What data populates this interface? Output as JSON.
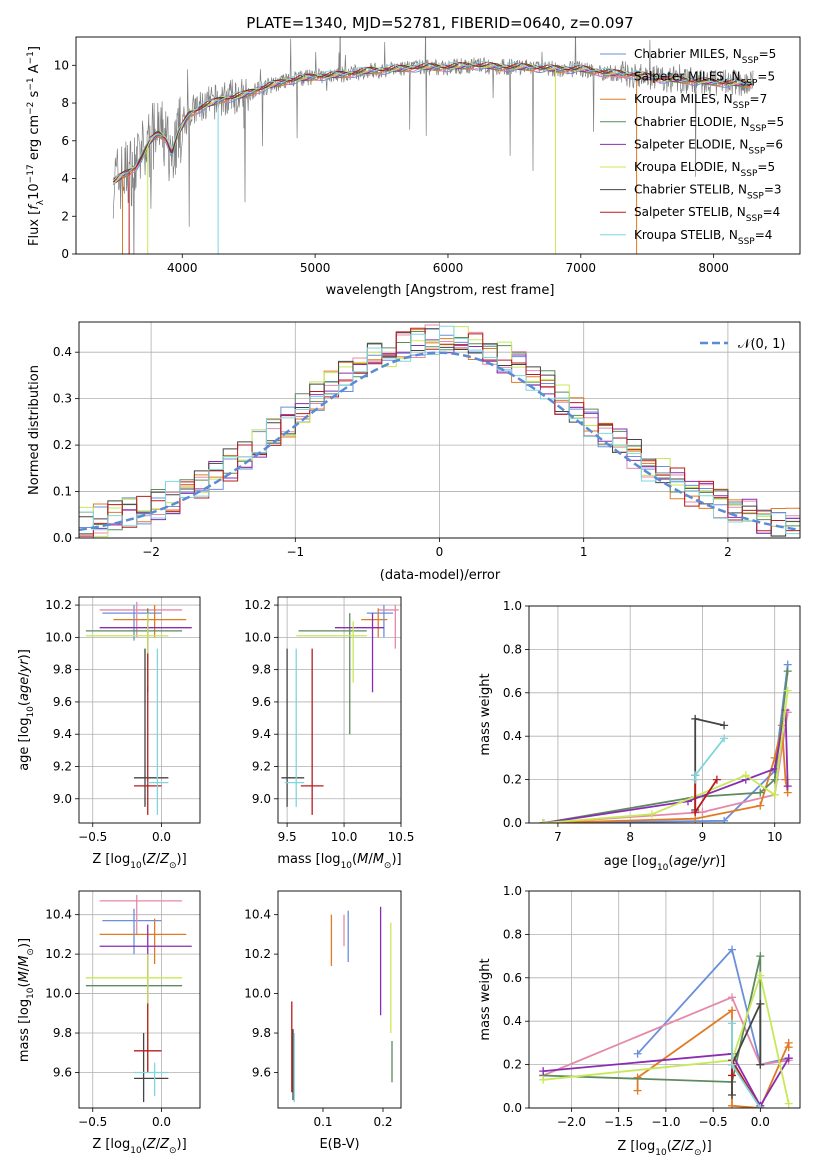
{
  "colors": {
    "chabrier_miles": "#6a8fdc",
    "salpeter_miles": "#e48aa8",
    "kroupa_miles": "#e07b25",
    "chabrier_elodie": "#5f8a5f",
    "salpeter_elodie": "#8a2db2",
    "kroupa_elodie": "#c8e85a",
    "chabrier_stelib": "#444444",
    "salpeter_stelib": "#b81c1c",
    "kroupa_stelib": "#7fd6dc",
    "observed": "#808080",
    "normal": "#5b8bd6",
    "grid": "#b0b0b0"
  },
  "chart_data": [
    {
      "id": "spectrum",
      "type": "line",
      "title": "PLATE=1340, MJD=52781, FIBERID=0640, z=0.097",
      "xlabel": "wavelength [Angstrom, rest frame]",
      "ylabel": "Flux [f_λ 10^-17 erg cm^-2 s^-1 A^-1]",
      "xlim": [
        3200,
        8650
      ],
      "ylim": [
        0,
        11.5
      ],
      "xticks": [
        4000,
        5000,
        6000,
        7000,
        8000
      ],
      "yticks": [
        0,
        2,
        4,
        6,
        8,
        10
      ],
      "legend_position": "top-right",
      "legend": [
        {
          "base": "Chabrier MILES, N",
          "sub": "SSP",
          "tail": "=5",
          "color_key": "chabrier_miles"
        },
        {
          "base": "Salpeter MILES, N",
          "sub": "SSP",
          "tail": "=5",
          "color_key": "salpeter_miles"
        },
        {
          "base": "Kroupa MILES, N",
          "sub": "SSP",
          "tail": "=7",
          "color_key": "kroupa_miles"
        },
        {
          "base": "Chabrier ELODIE, N",
          "sub": "SSP",
          "tail": "=5",
          "color_key": "chabrier_elodie"
        },
        {
          "base": "Salpeter ELODIE, N",
          "sub": "SSP",
          "tail": "=6",
          "color_key": "salpeter_elodie"
        },
        {
          "base": "Kroupa ELODIE, N",
          "sub": "SSP",
          "tail": "=5",
          "color_key": "kroupa_elodie"
        },
        {
          "base": "Chabrier STELIB, N",
          "sub": "SSP",
          "tail": "=3",
          "color_key": "chabrier_stelib"
        },
        {
          "base": "Salpeter STELIB, N",
          "sub": "SSP",
          "tail": "=4",
          "color_key": "salpeter_stelib"
        },
        {
          "base": "Kroupa STELIB, N",
          "sub": "SSP",
          "tail": "=4",
          "color_key": "kroupa_stelib"
        }
      ],
      "continuum": [
        [
          3480,
          3.8
        ],
        [
          3560,
          4.2
        ],
        [
          3650,
          4.6
        ],
        [
          3700,
          5.2
        ],
        [
          3760,
          6.0
        ],
        [
          3820,
          6.4
        ],
        [
          3880,
          6.1
        ],
        [
          3920,
          5.3
        ],
        [
          3970,
          6.4
        ],
        [
          4050,
          7.4
        ],
        [
          4150,
          7.8
        ],
        [
          4300,
          8.2
        ],
        [
          4450,
          8.4
        ],
        [
          4600,
          8.8
        ],
        [
          4800,
          9.2
        ],
        [
          5000,
          9.4
        ],
        [
          5200,
          9.5
        ],
        [
          5400,
          9.7
        ],
        [
          5600,
          9.8
        ],
        [
          5800,
          9.9
        ],
        [
          6000,
          9.9
        ],
        [
          6200,
          10.0
        ],
        [
          6400,
          9.9
        ],
        [
          6600,
          9.9
        ],
        [
          6800,
          9.8
        ],
        [
          7000,
          9.8
        ],
        [
          7200,
          9.6
        ],
        [
          7400,
          9.5
        ],
        [
          7600,
          9.3
        ],
        [
          7800,
          9.2
        ],
        [
          8000,
          9.1
        ],
        [
          8300,
          9.0
        ]
      ]
    },
    {
      "id": "residuals",
      "type": "histogram",
      "xlabel": "(data-model)/error",
      "ylabel": "Normed distribution",
      "xlim": [
        -2.5,
        2.5
      ],
      "ylim": [
        0,
        0.465
      ],
      "xticks": [
        -2,
        -1,
        0,
        1,
        2
      ],
      "yticks": [
        0.0,
        0.1,
        0.2,
        0.3,
        0.4
      ],
      "grid": true,
      "bins": 50,
      "legend_position": "top-right",
      "legend_label": "N(0,1)"
    },
    {
      "id": "age_vs_Z",
      "type": "errorbar",
      "xlabel": "Z [log10(Z/Z☉)]",
      "ylabel": "age [log10(age/yr)]",
      "xlim": [
        -0.6,
        0.28
      ],
      "ylim": [
        8.85,
        10.25
      ],
      "xticks": [
        -0.5,
        0.0
      ],
      "yticks": [
        9.0,
        9.2,
        9.4,
        9.6,
        9.8,
        10.0,
        10.2
      ],
      "grid": true,
      "points": [
        {
          "c": "chabrier_miles",
          "x": -0.2,
          "xlo": -0.43,
          "xhi": 0.0,
          "y": 10.15,
          "ylo": 9.98,
          "yhi": 10.2
        },
        {
          "c": "salpeter_miles",
          "x": -0.18,
          "xlo": -0.45,
          "xhi": 0.15,
          "y": 10.17,
          "ylo": 10.0,
          "yhi": 10.22
        },
        {
          "c": "kroupa_miles",
          "x": -0.05,
          "xlo": -0.35,
          "xhi": 0.18,
          "y": 10.11,
          "ylo": 10.0,
          "yhi": 10.2
        },
        {
          "c": "chabrier_elodie",
          "x": -0.1,
          "xlo": -0.55,
          "xhi": 0.15,
          "y": 10.04,
          "ylo": 9.75,
          "yhi": 10.18
        },
        {
          "c": "salpeter_elodie",
          "x": -0.1,
          "xlo": -0.45,
          "xhi": 0.22,
          "y": 10.06,
          "ylo": 9.66,
          "yhi": 10.15
        },
        {
          "c": "kroupa_elodie",
          "x": -0.1,
          "xlo": -0.55,
          "xhi": 0.05,
          "y": 10.01,
          "ylo": 9.7,
          "yhi": 10.15
        },
        {
          "c": "chabrier_stelib",
          "x": -0.12,
          "xlo": -0.2,
          "xhi": 0.05,
          "y": 9.13,
          "ylo": 8.95,
          "yhi": 9.93
        },
        {
          "c": "salpeter_stelib",
          "x": -0.1,
          "xlo": -0.2,
          "xhi": 0.0,
          "y": 9.08,
          "ylo": 8.9,
          "yhi": 9.9
        },
        {
          "c": "kroupa_stelib",
          "x": -0.03,
          "xlo": -0.1,
          "xhi": 0.05,
          "y": 9.1,
          "ylo": 8.9,
          "yhi": 9.93
        }
      ]
    },
    {
      "id": "age_vs_mass",
      "type": "errorbar",
      "xlabel": "mass [log10(M/M☉)]",
      "ylabel": "",
      "xlim": [
        9.42,
        10.5
      ],
      "ylim": [
        8.85,
        10.25
      ],
      "xticks": [
        9.5,
        10.0,
        10.5
      ],
      "yticks": [
        9.0,
        9.2,
        9.4,
        9.6,
        9.8,
        10.0,
        10.2
      ],
      "grid": true,
      "points": [
        {
          "c": "chabrier_miles",
          "x": 10.35,
          "xlo": 10.2,
          "xhi": 10.43,
          "y": 10.15,
          "ylo": 10.0,
          "yhi": 10.2
        },
        {
          "c": "salpeter_miles",
          "x": 10.45,
          "xlo": 10.3,
          "xhi": 10.48,
          "y": 10.17,
          "ylo": 9.93,
          "yhi": 10.2
        },
        {
          "c": "kroupa_miles",
          "x": 10.3,
          "xlo": 10.15,
          "xhi": 10.38,
          "y": 10.11,
          "ylo": 10.0,
          "yhi": 10.18
        },
        {
          "c": "chabrier_elodie",
          "x": 10.05,
          "xlo": 9.6,
          "xhi": 10.2,
          "y": 10.04,
          "ylo": 9.4,
          "yhi": 10.15
        },
        {
          "c": "salpeter_elodie",
          "x": 10.25,
          "xlo": 9.92,
          "xhi": 10.35,
          "y": 10.06,
          "ylo": 9.66,
          "yhi": 10.15
        },
        {
          "c": "kroupa_elodie",
          "x": 10.08,
          "xlo": 9.58,
          "xhi": 10.2,
          "y": 10.01,
          "ylo": 9.72,
          "yhi": 10.1
        },
        {
          "c": "chabrier_stelib",
          "x": 9.5,
          "xlo": 9.45,
          "xhi": 9.65,
          "y": 9.13,
          "ylo": 8.95,
          "yhi": 9.93
        },
        {
          "c": "salpeter_stelib",
          "x": 9.72,
          "xlo": 9.62,
          "xhi": 9.82,
          "y": 9.08,
          "ylo": 8.9,
          "yhi": 9.93
        },
        {
          "c": "kroupa_stelib",
          "x": 9.58,
          "xlo": 9.48,
          "xhi": 9.65,
          "y": 9.1,
          "ylo": 8.95,
          "yhi": 9.93
        }
      ]
    },
    {
      "id": "weight_vs_age",
      "type": "line",
      "xlabel": "age [log10(age/yr)]",
      "ylabel": "mass weight",
      "xlim": [
        6.6,
        10.35
      ],
      "ylim": [
        0,
        1.0
      ],
      "xticks": [
        7,
        8,
        9,
        10
      ],
      "yticks": [
        0.0,
        0.2,
        0.4,
        0.6,
        0.8,
        1.0
      ],
      "grid": true,
      "series": [
        {
          "c": "chabrier_miles",
          "x": [
            6.8,
            9.3,
            10.0,
            10.18
          ],
          "y": [
            0.0,
            0.01,
            0.24,
            0.73
          ]
        },
        {
          "c": "salpeter_miles",
          "x": [
            6.8,
            9.0,
            10.0,
            10.18
          ],
          "y": [
            0.0,
            0.05,
            0.13,
            0.51
          ]
        },
        {
          "c": "kroupa_miles",
          "x": [
            6.8,
            8.9,
            9.8,
            10.0,
            10.1,
            10.15,
            10.18
          ],
          "y": [
            0.0,
            0.02,
            0.08,
            0.3,
            0.45,
            0.2,
            0.14
          ]
        },
        {
          "c": "chabrier_elodie",
          "x": [
            6.8,
            8.9,
            9.8,
            10.0,
            10.18
          ],
          "y": [
            0.0,
            0.12,
            0.14,
            0.2,
            0.7
          ]
        },
        {
          "c": "salpeter_elodie",
          "x": [
            6.8,
            8.8,
            9.6,
            10.0,
            10.15,
            10.18
          ],
          "y": [
            0.0,
            0.1,
            0.2,
            0.25,
            0.52,
            0.17
          ]
        },
        {
          "c": "kroupa_elodie",
          "x": [
            6.8,
            8.3,
            9.6,
            10.0,
            10.18
          ],
          "y": [
            0.0,
            0.04,
            0.22,
            0.13,
            0.61
          ]
        },
        {
          "c": "chabrier_stelib",
          "x": [
            8.9,
            8.9,
            9.3
          ],
          "y": [
            0.06,
            0.48,
            0.45
          ]
        },
        {
          "c": "salpeter_stelib",
          "x": [
            8.9,
            8.9,
            9.2
          ],
          "y": [
            0.22,
            0.05,
            0.2
          ]
        },
        {
          "c": "kroupa_stelib",
          "x": [
            8.9,
            8.9,
            9.3
          ],
          "y": [
            0.2,
            0.22,
            0.39
          ]
        }
      ]
    },
    {
      "id": "mass_vs_Z",
      "type": "errorbar",
      "xlabel": "Z [log10(Z/Z☉)]",
      "ylabel": "mass [log10(M/M☉)]",
      "xlim": [
        -0.6,
        0.28
      ],
      "ylim": [
        9.42,
        10.52
      ],
      "xticks": [
        -0.5,
        0.0
      ],
      "yticks": [
        9.6,
        9.8,
        10.0,
        10.2,
        10.4
      ],
      "grid": true,
      "points": [
        {
          "c": "chabrier_miles",
          "x": -0.2,
          "xlo": -0.43,
          "xhi": 0.0,
          "y": 10.37,
          "ylo": 10.2,
          "yhi": 10.43
        },
        {
          "c": "salpeter_miles",
          "x": -0.18,
          "xlo": -0.45,
          "xhi": 0.15,
          "y": 10.47,
          "ylo": 10.3,
          "yhi": 10.5
        },
        {
          "c": "kroupa_miles",
          "x": -0.05,
          "xlo": -0.45,
          "xhi": 0.18,
          "y": 10.3,
          "ylo": 10.15,
          "yhi": 10.38
        },
        {
          "c": "chabrier_elodie",
          "x": -0.1,
          "xlo": -0.55,
          "xhi": 0.15,
          "y": 10.04,
          "ylo": 9.6,
          "yhi": 10.2
        },
        {
          "c": "salpeter_elodie",
          "x": -0.1,
          "xlo": -0.45,
          "xhi": 0.22,
          "y": 10.24,
          "ylo": 9.9,
          "yhi": 10.35
        },
        {
          "c": "kroupa_elodie",
          "x": -0.1,
          "xlo": -0.55,
          "xhi": 0.15,
          "y": 10.08,
          "ylo": 9.6,
          "yhi": 10.2
        },
        {
          "c": "chabrier_stelib",
          "x": -0.13,
          "xlo": -0.2,
          "xhi": 0.05,
          "y": 9.57,
          "ylo": 9.45,
          "yhi": 9.8
        },
        {
          "c": "salpeter_stelib",
          "x": -0.1,
          "xlo": -0.2,
          "xhi": 0.0,
          "y": 9.71,
          "ylo": 9.6,
          "yhi": 9.95
        },
        {
          "c": "kroupa_stelib",
          "x": -0.05,
          "xlo": -0.2,
          "xhi": 0.05,
          "y": 9.6,
          "ylo": 9.48,
          "yhi": 9.65
        }
      ]
    },
    {
      "id": "mass_vs_ebv",
      "type": "errorbar",
      "xlabel": "E(B-V)",
      "ylabel": "",
      "xlim": [
        0.025,
        0.23
      ],
      "ylim": [
        9.42,
        10.52
      ],
      "xticks": [
        0.1,
        0.2
      ],
      "yticks": [
        9.6,
        9.8,
        10.0,
        10.2,
        10.4
      ],
      "grid": false,
      "points": [
        {
          "c": "chabrier_miles",
          "x": 0.142,
          "y": 10.3,
          "ylo": 10.16,
          "yhi": 10.42
        },
        {
          "c": "salpeter_miles",
          "x": 0.135,
          "y": 10.32,
          "ylo": 10.24,
          "yhi": 10.4
        },
        {
          "c": "kroupa_miles",
          "x": 0.114,
          "y": 10.3,
          "ylo": 10.14,
          "yhi": 10.4
        },
        {
          "c": "chabrier_elodie",
          "x": 0.215,
          "y": 9.65,
          "ylo": 9.55,
          "yhi": 9.76
        },
        {
          "c": "salpeter_elodie",
          "x": 0.196,
          "y": 10.2,
          "ylo": 9.89,
          "yhi": 10.44
        },
        {
          "c": "kroupa_elodie",
          "x": 0.213,
          "y": 10.0,
          "ylo": 9.8,
          "yhi": 10.36
        },
        {
          "c": "chabrier_stelib",
          "x": 0.05,
          "y": 9.6,
          "ylo": 9.46,
          "yhi": 9.82
        },
        {
          "c": "salpeter_stelib",
          "x": 0.048,
          "y": 9.75,
          "ylo": 9.5,
          "yhi": 9.96
        },
        {
          "c": "kroupa_stelib",
          "x": 0.052,
          "y": 9.6,
          "ylo": 9.45,
          "yhi": 9.8
        }
      ]
    },
    {
      "id": "weight_vs_Z",
      "type": "line",
      "xlabel": "Z [log10(Z/Z☉)]",
      "ylabel": "mass weight",
      "xlim": [
        -2.45,
        0.42
      ],
      "ylim": [
        0,
        1.0
      ],
      "xticks": [
        -2.0,
        -1.5,
        -1.0,
        -0.5,
        0.0
      ],
      "yticks": [
        0.0,
        0.2,
        0.4,
        0.6,
        0.8,
        1.0
      ],
      "grid": true,
      "series": [
        {
          "c": "chabrier_miles",
          "x": [
            -1.3,
            -0.3,
            0.0,
            0.3
          ],
          "y": [
            0.25,
            0.73,
            0.2,
            0.23
          ]
        },
        {
          "c": "salpeter_miles",
          "x": [
            -2.3,
            -0.3,
            0.0,
            0.3
          ],
          "y": [
            0.15,
            0.51,
            0.2,
            0.22
          ]
        },
        {
          "c": "kroupa_miles",
          "x": [
            -1.3,
            -1.3,
            -0.3,
            -0.3,
            0.0,
            0.3,
            0.3
          ],
          "y": [
            0.08,
            0.14,
            0.45,
            0.01,
            0.0,
            0.3,
            0.28
          ]
        },
        {
          "c": "chabrier_elodie",
          "x": [
            -2.3,
            -0.3,
            0.0,
            0.0
          ],
          "y": [
            0.15,
            0.12,
            0.7,
            0.2
          ]
        },
        {
          "c": "salpeter_elodie",
          "x": [
            -2.3,
            -0.3,
            0.0,
            0.3,
            0.3
          ],
          "y": [
            0.17,
            0.25,
            0.01,
            0.23,
            0.23
          ]
        },
        {
          "c": "kroupa_elodie",
          "x": [
            -2.3,
            -0.3,
            0.0,
            0.3
          ],
          "y": [
            0.13,
            0.22,
            0.61,
            0.02
          ]
        },
        {
          "c": "chabrier_stelib",
          "x": [
            -0.3,
            -0.3,
            0.0,
            0.0
          ],
          "y": [
            0.06,
            0.2,
            0.48,
            0.2
          ]
        },
        {
          "c": "salpeter_stelib",
          "x": [
            -0.3,
            -0.3,
            0.0
          ],
          "y": [
            0.15,
            0.22,
            0.0
          ]
        },
        {
          "c": "kroupa_stelib",
          "x": [
            -0.3,
            -0.3,
            0.0
          ],
          "y": [
            0.39,
            0.2,
            0.0
          ]
        }
      ]
    }
  ]
}
